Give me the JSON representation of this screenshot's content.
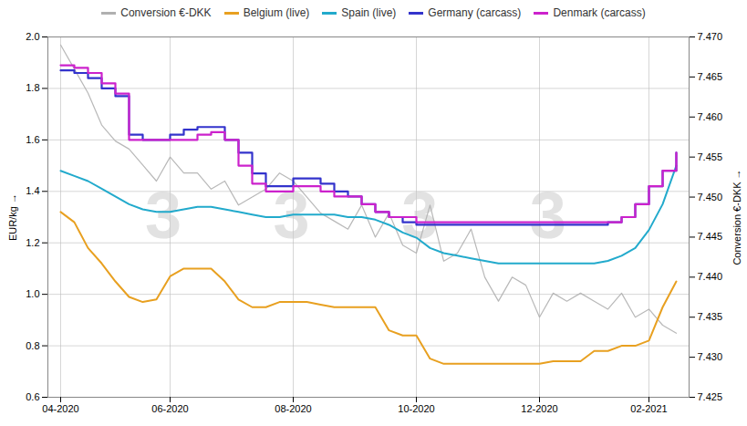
{
  "chart_data": {
    "type": "line",
    "ylabel": "EUR/kg",
    "y2label": "Conversion €-DKK",
    "categories": [
      "04-2020",
      null,
      null,
      null,
      null,
      null,
      null,
      null,
      "06-2020",
      null,
      null,
      null,
      null,
      null,
      null,
      null,
      null,
      "08-2020",
      null,
      null,
      null,
      null,
      null,
      null,
      null,
      null,
      "10-2020",
      null,
      null,
      null,
      null,
      null,
      null,
      null,
      null,
      "12-2020",
      null,
      null,
      null,
      null,
      null,
      null,
      null,
      "02-2021",
      null,
      null
    ],
    "series": [
      {
        "name": "Conversion €-DKK",
        "color": "#b0b0b0",
        "type": "line",
        "axis": "y2",
        "values": [
          7.469,
          7.466,
          7.463,
          7.459,
          7.457,
          7.456,
          7.454,
          7.452,
          7.455,
          7.453,
          7.453,
          7.451,
          7.452,
          7.449,
          7.45,
          7.451,
          7.453,
          7.452,
          7.45,
          7.448,
          7.447,
          7.446,
          7.449,
          7.445,
          7.448,
          7.444,
          7.443,
          7.449,
          7.442,
          7.443,
          7.446,
          7.44,
          7.437,
          7.44,
          7.439,
          7.435,
          7.438,
          7.437,
          7.438,
          7.437,
          7.436,
          7.438,
          7.435,
          7.436,
          7.434,
          7.433
        ]
      },
      {
        "name": "Belgium (live)",
        "color": "#e8a020",
        "type": "line",
        "values": [
          1.32,
          1.28,
          1.18,
          1.12,
          1.05,
          0.99,
          0.97,
          0.98,
          1.07,
          1.1,
          1.1,
          1.1,
          1.05,
          0.98,
          0.95,
          0.95,
          0.97,
          0.97,
          0.97,
          0.96,
          0.95,
          0.95,
          0.95,
          0.95,
          0.86,
          0.84,
          0.84,
          0.75,
          0.73,
          0.73,
          0.73,
          0.73,
          0.73,
          0.73,
          0.73,
          0.73,
          0.74,
          0.74,
          0.74,
          0.78,
          0.78,
          0.8,
          0.8,
          0.82,
          0.95,
          1.05
        ]
      },
      {
        "name": "Spain (live)",
        "color": "#22aacc",
        "type": "line",
        "values": [
          1.48,
          1.46,
          1.44,
          1.41,
          1.38,
          1.35,
          1.33,
          1.32,
          1.32,
          1.33,
          1.34,
          1.34,
          1.33,
          1.32,
          1.31,
          1.3,
          1.3,
          1.31,
          1.31,
          1.31,
          1.31,
          1.3,
          1.3,
          1.29,
          1.27,
          1.24,
          1.22,
          1.18,
          1.16,
          1.15,
          1.14,
          1.13,
          1.12,
          1.12,
          1.12,
          1.12,
          1.12,
          1.12,
          1.12,
          1.12,
          1.13,
          1.15,
          1.18,
          1.25,
          1.35,
          1.5
        ]
      },
      {
        "name": "Germany (carcass)",
        "color": "#3333cc",
        "type": "step",
        "values": [
          1.87,
          1.86,
          1.84,
          1.8,
          1.77,
          1.62,
          1.6,
          1.6,
          1.62,
          1.64,
          1.65,
          1.65,
          1.6,
          1.55,
          1.47,
          1.42,
          1.42,
          1.45,
          1.45,
          1.43,
          1.4,
          1.38,
          1.35,
          1.32,
          1.3,
          1.28,
          1.27,
          1.27,
          1.27,
          1.27,
          1.27,
          1.27,
          1.27,
          1.27,
          1.27,
          1.27,
          1.27,
          1.27,
          1.27,
          1.27,
          1.28,
          1.3,
          1.35,
          1.42,
          1.48,
          1.55
        ]
      },
      {
        "name": "Denmark (carcass)",
        "color": "#cc22cc",
        "type": "step",
        "values": [
          1.89,
          1.88,
          1.86,
          1.82,
          1.78,
          1.6,
          1.6,
          1.6,
          1.6,
          1.6,
          1.62,
          1.63,
          1.6,
          1.5,
          1.43,
          1.4,
          1.4,
          1.42,
          1.42,
          1.4,
          1.38,
          1.38,
          1.35,
          1.32,
          1.3,
          1.3,
          1.28,
          1.28,
          1.28,
          1.28,
          1.28,
          1.28,
          1.28,
          1.28,
          1.28,
          1.28,
          1.28,
          1.28,
          1.28,
          1.28,
          1.28,
          1.3,
          1.35,
          1.42,
          1.48,
          1.55
        ]
      }
    ],
    "ylim": [
      0.6,
      2.0
    ],
    "yticks": [
      0.6,
      0.8,
      {
        "value": 1.0,
        "label": "1.0"
      },
      1.2,
      1.4,
      1.6,
      1.8,
      {
        "value": 2.0,
        "label": "2.0"
      }
    ],
    "y2lim": [
      7.425,
      7.47
    ],
    "y2ticks": [
      7.425,
      {
        "value": 7.43,
        "label": "7.430"
      },
      7.435,
      {
        "value": 7.44,
        "label": "7.440"
      },
      7.445,
      {
        "value": 7.45,
        "label": "7.450"
      },
      7.455,
      {
        "value": 7.46,
        "label": "7.460"
      },
      7.465,
      {
        "value": 7.47,
        "label": "7.470"
      }
    ],
    "grid": true,
    "legend": "top",
    "annotations": [
      "3",
      "3",
      "3",
      "3"
    ]
  }
}
